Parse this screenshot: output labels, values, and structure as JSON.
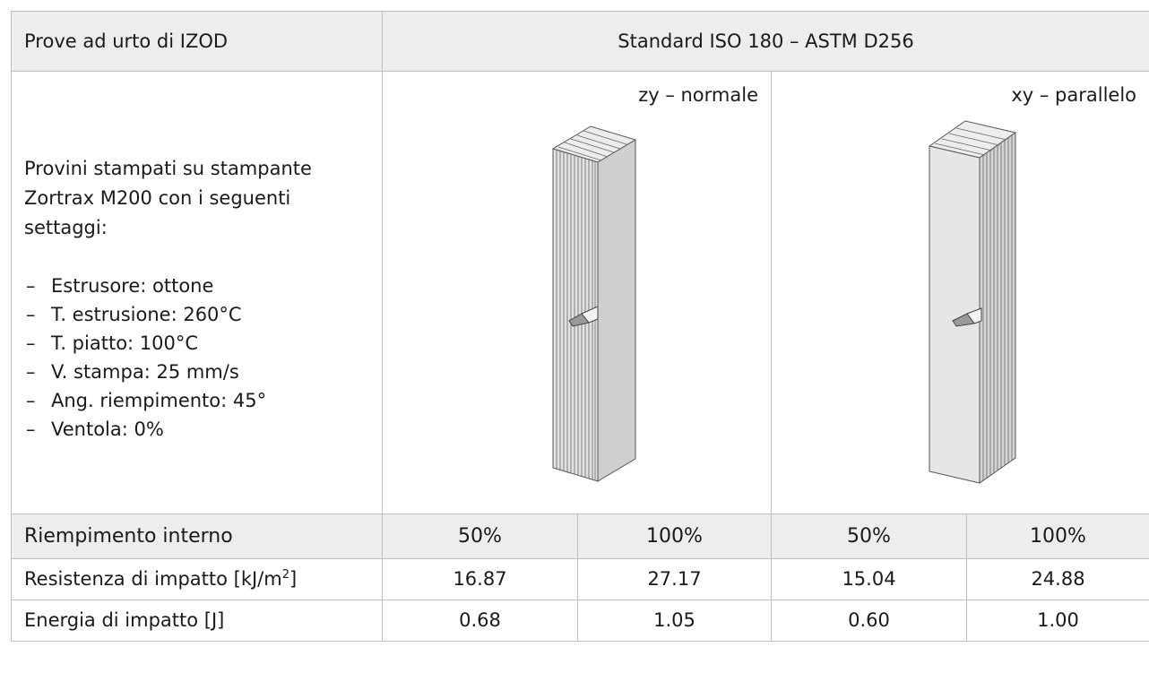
{
  "header": {
    "title": "Prove ad urto di IZOD",
    "standard": "Standard ISO 180 – ASTM D256"
  },
  "description": {
    "intro": "Provini stampati su stampante Zortrax M200 con i seguenti settaggi:",
    "settings": [
      "Estrusore: ottone",
      "T. estrusione: 260°C",
      "T. piatto: 100°C",
      "V. stampa: 25 mm/s",
      "Ang. riempimento: 45°",
      "Ventola: 0%"
    ],
    "bullet": "–"
  },
  "orientations": [
    {
      "label": "zy – normale"
    },
    {
      "label": "xy – parallelo"
    }
  ],
  "fill_row": {
    "label": "Riempimento interno",
    "values": [
      "50%",
      "100%",
      "50%",
      "100%"
    ]
  },
  "rows": [
    {
      "label": "Resistenza di impatto [kJ/m",
      "label_sup": "2",
      "label_end": "]",
      "values": [
        "16.87",
        "27.17",
        "15.04",
        "24.88"
      ]
    },
    {
      "label": "Energia di impatto [J]",
      "values": [
        "0.68",
        "1.05",
        "0.60",
        "1.00"
      ]
    }
  ]
}
